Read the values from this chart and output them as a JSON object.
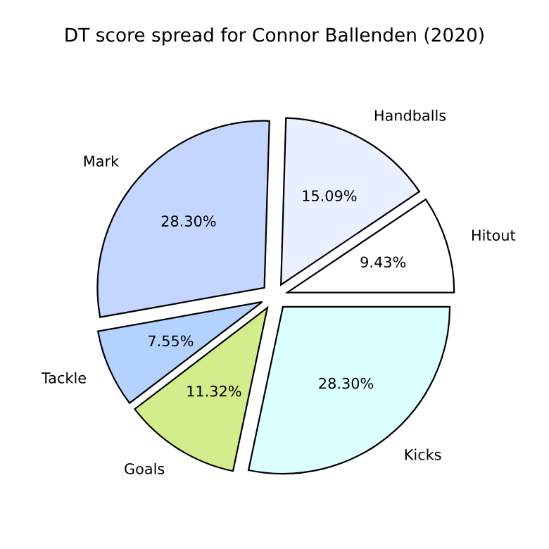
{
  "chart_data": {
    "type": "pie",
    "title": "DT score spread for Connor Ballenden (2020)",
    "categories": [
      "Hitout",
      "Handballs",
      "Mark",
      "Tackle",
      "Goals",
      "Kicks"
    ],
    "values": [
      9.43,
      15.09,
      28.3,
      7.55,
      11.32,
      28.3
    ],
    "value_labels": [
      "9.43%",
      "15.09%",
      "28.30%",
      "7.55%",
      "11.32%",
      "28.30%"
    ],
    "colors": [
      "#ffffff",
      "#eaf0ff",
      "#c4d6ff",
      "#b4d2ff",
      "#d4ec8c",
      "#dcffff"
    ]
  }
}
